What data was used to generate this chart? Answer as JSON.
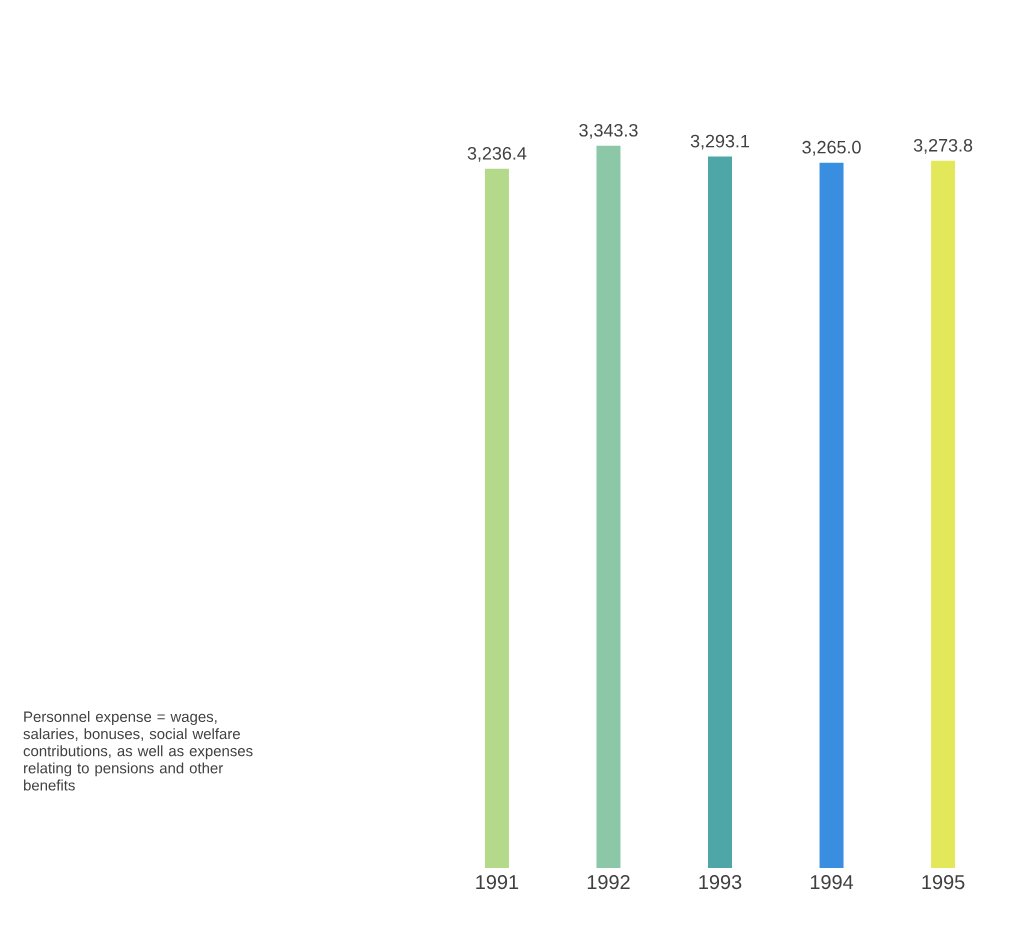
{
  "chart_data": {
    "type": "bar",
    "categories": [
      "1991",
      "1992",
      "1993",
      "1994",
      "1995"
    ],
    "values": [
      3236.4,
      3343.3,
      3293.1,
      3265.0,
      3273.8
    ],
    "value_labels": [
      "3,236.4",
      "3,343.3",
      "3,293.1",
      "3,265.0",
      "3,273.8"
    ],
    "colors": [
      "#b5d98a",
      "#8cc7a8",
      "#4fa6a8",
      "#3a8ee0",
      "#e3e85a"
    ],
    "annotations": [
      "Personnel expense = wages, salaries, bonuses, social welfare contributions, as well as expenses relating to pensions and other benefits"
    ]
  }
}
